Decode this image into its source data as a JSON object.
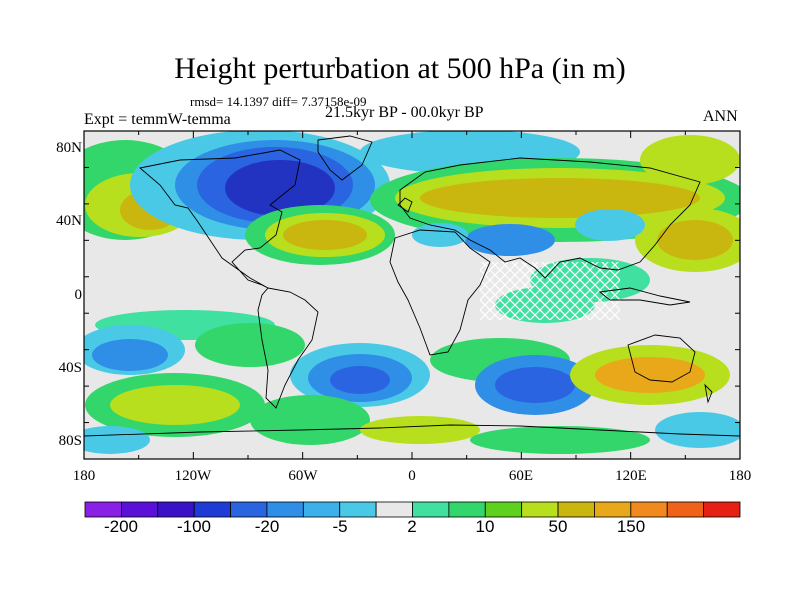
{
  "title": "Height perturbation at 500 hPa (in m)",
  "stats": "rmsd= 14.1397 diff= 7.37158e-09",
  "experiment": "Expt = temmW-temma",
  "period": "21.5kyr BP - 00.0kyr BP",
  "season": "ANN",
  "lat_ticks": [
    "80N",
    "40N",
    "0",
    "40S",
    "80S"
  ],
  "lon_ticks": [
    "180",
    "120W",
    "60W",
    "0",
    "60E",
    "120E",
    "180"
  ],
  "colorbar": {
    "labels": [
      "-200",
      "-100",
      "-20",
      "-5",
      "2",
      "10",
      "50",
      "150"
    ],
    "colors": [
      "#8a1fe6",
      "#5a10d6",
      "#3a12c8",
      "#1f3bd6",
      "#2a64e0",
      "#2f8ee6",
      "#3bb0ea",
      "#49c9e6",
      "#e8e8e8",
      "#3fe0a0",
      "#33d66a",
      "#5ed11f",
      "#b8df1d",
      "#c9b60f",
      "#e8a81a",
      "#f08a1e",
      "#f0621a",
      "#e62014"
    ]
  },
  "map_palette": {
    "background": "#e8e8e8",
    "blue_dark": "#2233c2",
    "blue": "#2a64e0",
    "blue_mid": "#2f8ee6",
    "cyan": "#49c9e6",
    "teal": "#3fe0a0",
    "green": "#33d66a",
    "yellowgreen": "#b8df1d",
    "olive": "#c9b60f",
    "orange": "#e8a81a"
  }
}
